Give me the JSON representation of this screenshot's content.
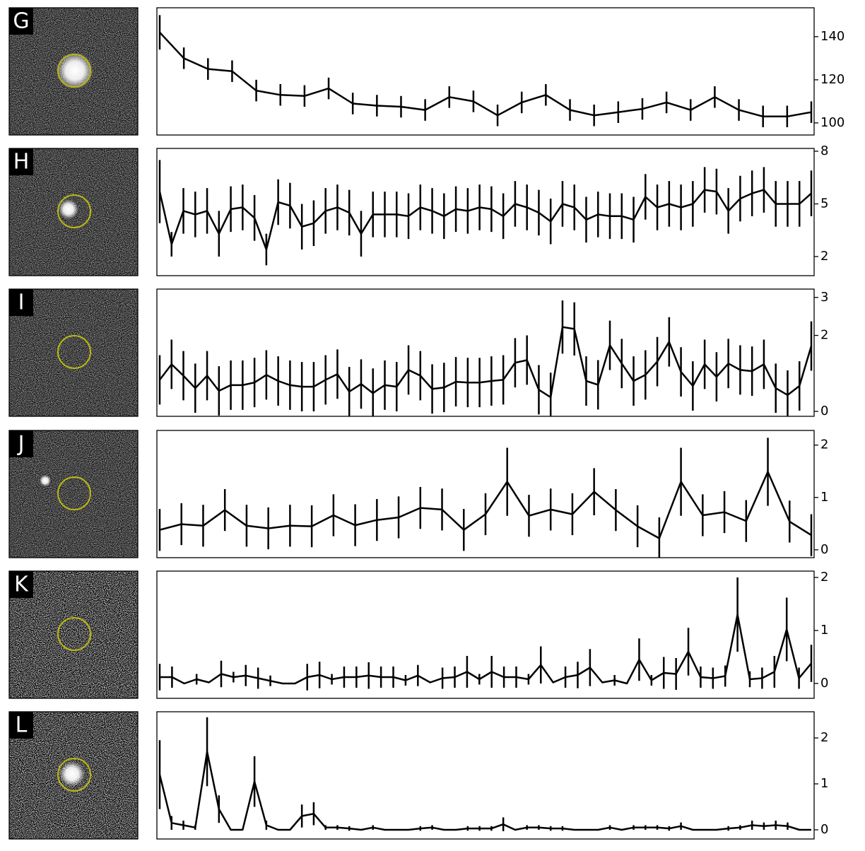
{
  "chart_data": [
    {
      "type": "line",
      "label": "G",
      "color": "#000000",
      "values": [
        142,
        130,
        125,
        124,
        115,
        113,
        112.5,
        116,
        109,
        108,
        107.5,
        106,
        112,
        110,
        103.5,
        109.5,
        113,
        106,
        103.5,
        105,
        106.5,
        109.5,
        106,
        112,
        106,
        103,
        103,
        105
      ],
      "errors": [
        8,
        5,
        5,
        5,
        5,
        5,
        5,
        5,
        5,
        5,
        5,
        5,
        5,
        5,
        5,
        5,
        5,
        5,
        5,
        5,
        5,
        5,
        5,
        5,
        5,
        5,
        5,
        5
      ],
      "ylim": [
        94.4,
        153.4
      ],
      "yticks": [
        100,
        120,
        140
      ]
    },
    {
      "type": "line",
      "label": "H",
      "color": "#000000",
      "values": [
        5.7,
        2.7,
        4.6,
        4.4,
        4.6,
        3.3,
        4.7,
        4.8,
        4.2,
        2.4,
        5.1,
        4.9,
        3.7,
        3.9,
        4.6,
        4.8,
        4.5,
        3.3,
        4.4,
        4.4,
        4.4,
        4.3,
        4.8,
        4.6,
        4.3,
        4.7,
        4.6,
        4.8,
        4.7,
        4.3,
        5.0,
        4.8,
        4.5,
        4.0,
        5.0,
        4.8,
        4.1,
        4.4,
        4.3,
        4.3,
        4.1,
        5.4,
        4.8,
        5.0,
        4.8,
        5.0,
        5.8,
        5.7,
        4.6,
        5.3,
        5.6,
        5.8,
        5.0,
        5.0,
        5.0,
        5.6
      ],
      "errors": [
        1.8,
        0.7,
        1.3,
        1.3,
        1.3,
        1.3,
        1.3,
        1.3,
        1.3,
        0.9,
        1.3,
        1.3,
        1.3,
        1.3,
        1.3,
        1.3,
        1.3,
        1.3,
        1.3,
        1.3,
        1.3,
        1.3,
        1.3,
        1.3,
        1.3,
        1.3,
        1.3,
        1.3,
        1.3,
        1.3,
        1.3,
        1.3,
        1.3,
        1.3,
        1.3,
        1.3,
        1.3,
        1.3,
        1.3,
        1.3,
        1.3,
        1.3,
        1.3,
        1.3,
        1.3,
        1.3,
        1.3,
        1.3,
        1.3,
        1.3,
        1.3,
        1.3,
        1.3,
        1.3,
        1.3,
        1.3
      ],
      "ylim": [
        0.91,
        8.16
      ],
      "yticks": [
        2,
        5,
        8
      ]
    },
    {
      "type": "line",
      "label": "I",
      "color": "#000000",
      "values": [
        0.83,
        1.24,
        0.94,
        0.61,
        0.94,
        0.54,
        0.69,
        0.69,
        0.76,
        0.96,
        0.8,
        0.69,
        0.65,
        0.65,
        0.83,
        0.98,
        0.52,
        0.72,
        0.48,
        0.69,
        0.65,
        1.09,
        0.94,
        0.59,
        0.63,
        0.78,
        0.76,
        0.76,
        0.8,
        0.83,
        1.28,
        1.35,
        0.57,
        0.37,
        2.22,
        2.17,
        0.8,
        0.7,
        1.74,
        1.26,
        0.8,
        0.96,
        1.31,
        1.83,
        1.04,
        0.67,
        1.24,
        0.91,
        1.26,
        1.09,
        1.06,
        1.24,
        0.61,
        0.43,
        0.67,
        1.72
      ],
      "errors": [
        0.65,
        0.65,
        0.65,
        0.65,
        0.65,
        0.65,
        0.65,
        0.65,
        0.65,
        0.65,
        0.65,
        0.65,
        0.65,
        0.65,
        0.65,
        0.65,
        0.65,
        0.65,
        0.65,
        0.65,
        0.65,
        0.65,
        0.65,
        0.65,
        0.65,
        0.65,
        0.65,
        0.65,
        0.65,
        0.65,
        0.65,
        0.65,
        0.65,
        0.65,
        0.7,
        0.7,
        0.65,
        0.65,
        0.65,
        0.65,
        0.65,
        0.65,
        0.65,
        0.65,
        0.65,
        0.65,
        0.65,
        0.65,
        0.65,
        0.65,
        0.65,
        0.65,
        0.65,
        0.65,
        0.65,
        0.65
      ],
      "ylim": [
        -0.13,
        3.22
      ],
      "yticks": [
        0,
        2,
        3
      ]
    },
    {
      "type": "line",
      "label": "J",
      "color": "#000000",
      "values": [
        0.38,
        0.49,
        0.46,
        0.76,
        0.46,
        0.41,
        0.46,
        0.45,
        0.66,
        0.47,
        0.57,
        0.62,
        0.8,
        0.77,
        0.38,
        0.68,
        1.3,
        0.65,
        0.77,
        0.68,
        1.11,
        0.76,
        0.45,
        0.22,
        1.3,
        0.66,
        0.72,
        0.55,
        1.49,
        0.54,
        0.28
      ],
      "errors": [
        0.4,
        0.4,
        0.4,
        0.4,
        0.4,
        0.4,
        0.4,
        0.4,
        0.4,
        0.4,
        0.4,
        0.4,
        0.4,
        0.4,
        0.4,
        0.4,
        0.65,
        0.4,
        0.4,
        0.4,
        0.45,
        0.4,
        0.4,
        0.4,
        0.65,
        0.4,
        0.4,
        0.4,
        0.65,
        0.4,
        0.4
      ],
      "ylim": [
        -0.15,
        2.28
      ],
      "yticks": [
        0,
        1,
        2
      ]
    },
    {
      "type": "line",
      "label": "K",
      "color": "#000000",
      "values": [
        0.12,
        0.12,
        0,
        0.08,
        0.02,
        0.18,
        0.12,
        0.15,
        0.1,
        0.05,
        0,
        0,
        0.12,
        0.16,
        0.08,
        0.12,
        0.12,
        0.15,
        0.12,
        0.12,
        0.06,
        0.15,
        0.02,
        0.1,
        0.12,
        0.22,
        0.08,
        0.22,
        0.12,
        0.12,
        0.08,
        0.35,
        0.02,
        0.12,
        0.16,
        0.3,
        0.02,
        0.06,
        0,
        0.45,
        0.06,
        0.2,
        0.18,
        0.6,
        0.12,
        0.1,
        0.14,
        1.3,
        0.08,
        0.1,
        0.22,
        1.02,
        0.1,
        0.38
      ],
      "errors": [
        0.25,
        0.2,
        0,
        0.1,
        0,
        0.25,
        0.1,
        0.2,
        0.2,
        0.1,
        0,
        0,
        0.25,
        0.25,
        0.1,
        0.2,
        0.2,
        0.25,
        0.2,
        0.2,
        0.1,
        0.2,
        0,
        0.2,
        0.2,
        0.3,
        0.1,
        0.3,
        0.2,
        0.2,
        0.1,
        0.35,
        0,
        0.2,
        0.25,
        0.35,
        0,
        0.1,
        0,
        0.4,
        0.1,
        0.3,
        0.3,
        0.45,
        0.2,
        0.2,
        0.2,
        0.7,
        0.15,
        0.2,
        0.3,
        0.6,
        0.2,
        0.35
      ],
      "ylim": [
        -0.28,
        2.12
      ],
      "yticks": [
        0,
        1,
        2
      ]
    },
    {
      "type": "line",
      "label": "L",
      "color": "#000000",
      "values": [
        1.2,
        0.15,
        0.1,
        0.05,
        1.7,
        0.45,
        0,
        0,
        1.05,
        0.1,
        0,
        0,
        0.3,
        0.35,
        0.05,
        0.05,
        0.03,
        0,
        0.05,
        0,
        0,
        0,
        0.03,
        0.05,
        0,
        0,
        0.03,
        0.03,
        0.03,
        0.12,
        0,
        0.05,
        0.05,
        0.03,
        0.03,
        0,
        0,
        0,
        0.05,
        0,
        0.05,
        0.05,
        0.05,
        0.03,
        0.08,
        0,
        0,
        0,
        0.03,
        0.05,
        0.1,
        0.08,
        0.1,
        0.08,
        0,
        0
      ],
      "errors": [
        0.75,
        0.15,
        0.1,
        0.05,
        0.75,
        0.3,
        0,
        0,
        0.55,
        0.1,
        0,
        0,
        0.25,
        0.25,
        0.05,
        0.05,
        0.05,
        0,
        0.05,
        0,
        0,
        0,
        0.05,
        0.05,
        0,
        0,
        0.05,
        0.05,
        0.05,
        0.15,
        0,
        0.05,
        0.05,
        0.05,
        0.05,
        0,
        0,
        0,
        0.05,
        0,
        0.05,
        0.05,
        0.05,
        0.05,
        0.08,
        0,
        0,
        0,
        0.05,
        0.05,
        0.1,
        0.08,
        0.1,
        0.08,
        0,
        0
      ],
      "ylim": [
        -0.2,
        2.57
      ],
      "yticks": [
        0,
        1,
        2
      ]
    }
  ]
}
